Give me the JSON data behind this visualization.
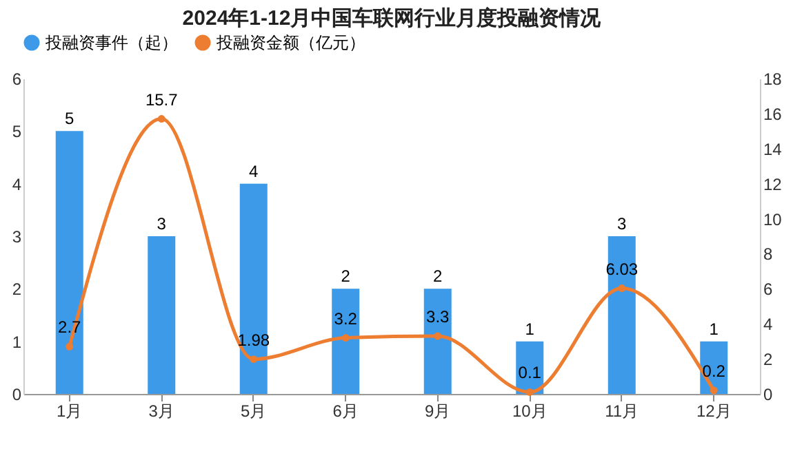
{
  "chart_data": {
    "type": "bar",
    "title": "2024年1-12月中国车联网行业月度投融资情况",
    "categories": [
      "1月",
      "3月",
      "5月",
      "6月",
      "9月",
      "10月",
      "11月",
      "12月"
    ],
    "series": [
      {
        "name": "投融资事件（起）",
        "color": "#3d9ae8",
        "values": [
          5,
          3,
          4,
          2,
          2,
          1,
          3,
          1
        ]
      },
      {
        "name": "投融资金额（亿元）",
        "type": "line",
        "axis": "y2",
        "color": "#ed7d31",
        "values": [
          2.7,
          15.7,
          1.98,
          3.2,
          3.3,
          0.1,
          6.03,
          0.2
        ]
      }
    ],
    "ylim": [
      0,
      6
    ],
    "yticks": [
      0,
      1,
      2,
      3,
      4,
      5,
      6
    ],
    "y2lim": [
      0,
      18
    ],
    "y2ticks": [
      0,
      2,
      4,
      6,
      8,
      10,
      12,
      14,
      16,
      18
    ],
    "data_labels": true,
    "legend": "top",
    "grid": false,
    "marker": "circle",
    "line_style": "solid"
  }
}
